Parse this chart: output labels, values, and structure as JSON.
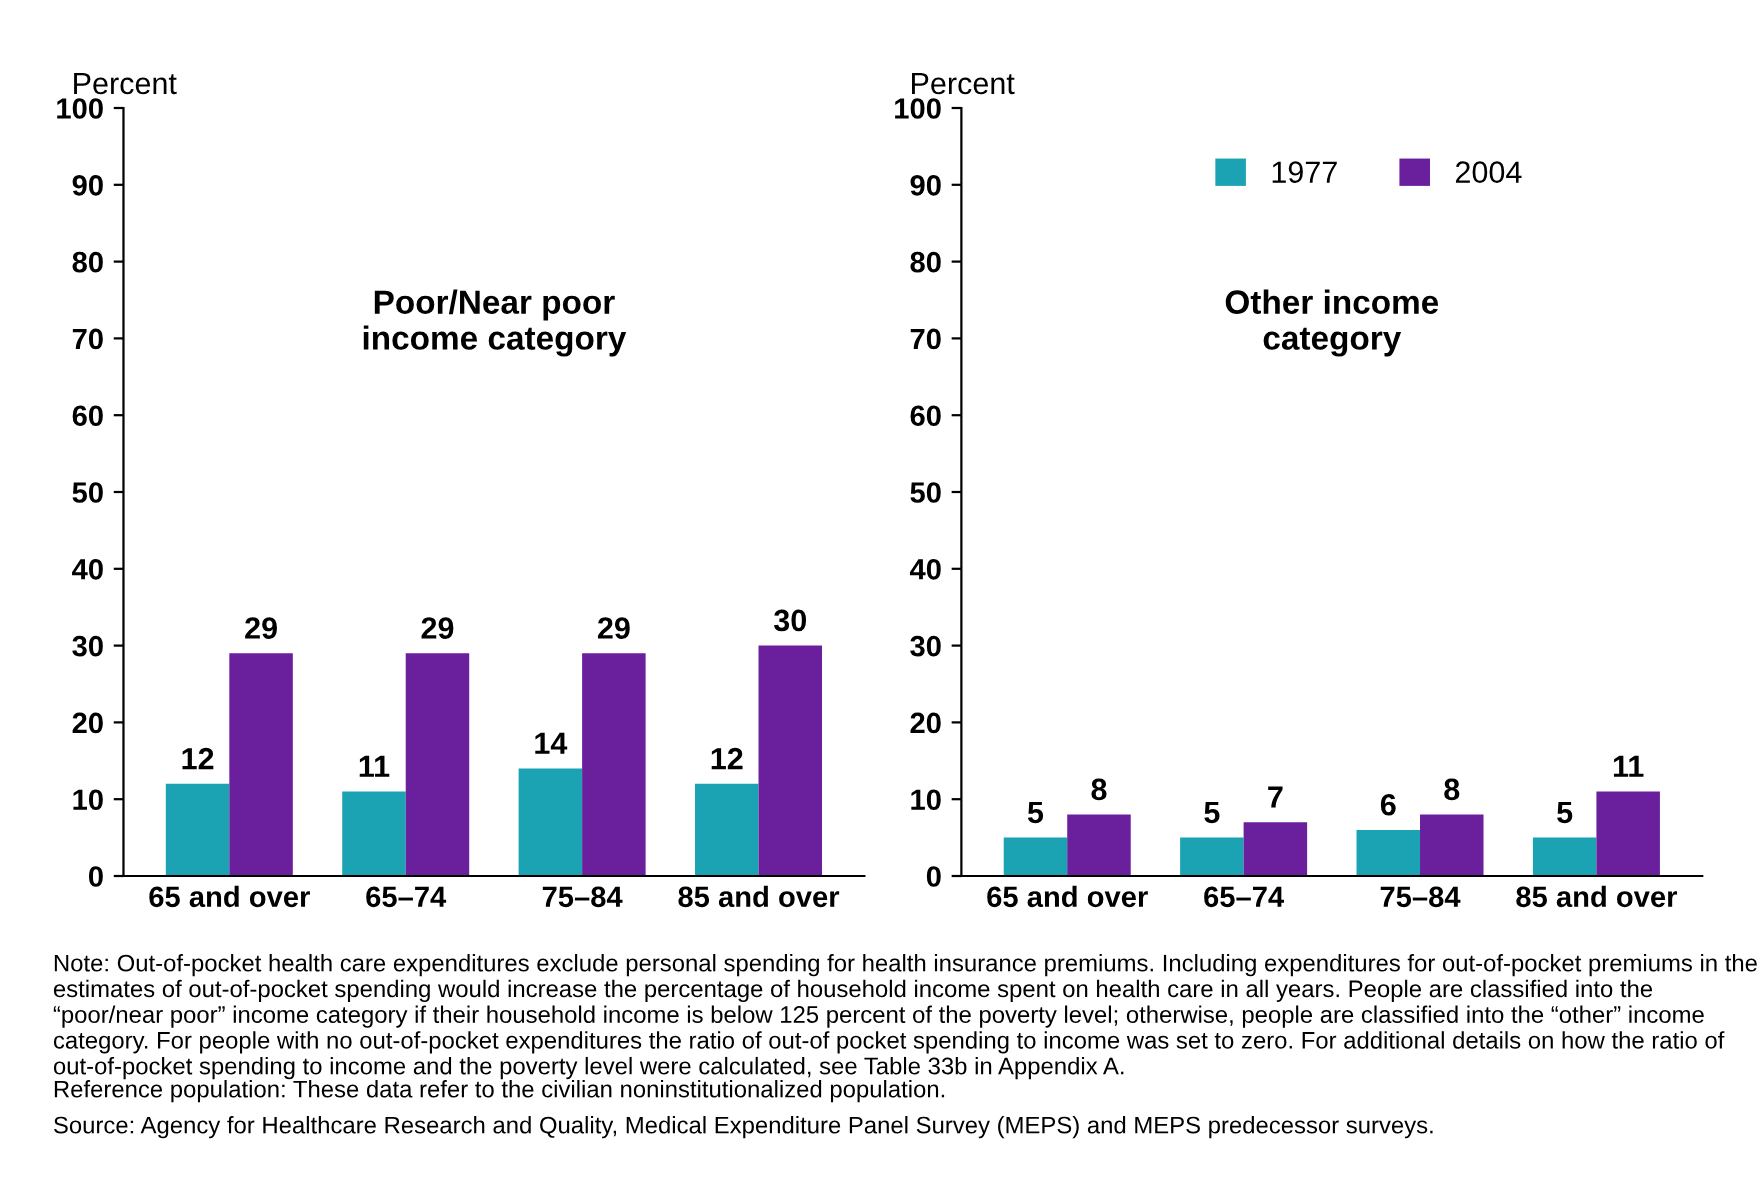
{
  "chart_data": [
    {
      "type": "bar",
      "title": "Poor/Near poor\nincome category",
      "ylabel": "Percent",
      "categories": [
        "65 and over",
        "65–74",
        "75–84",
        "85 and over"
      ],
      "series": [
        {
          "color": "#1ba3b3",
          "values": [
            12,
            11,
            14,
            12
          ]
        },
        {
          "color": "#6a1f9c",
          "values": [
            29,
            29,
            29,
            30
          ]
        }
      ],
      "ylim": [
        0,
        100
      ],
      "yticks": [
        0,
        10,
        20,
        30,
        40,
        50,
        60,
        70,
        80,
        90,
        100
      ],
      "grid": false,
      "legend": false,
      "data_labels": true,
      "annotations": [
        "Note: Out-of-pocket health care expenditures exclude personal spending for health insurance premiums. Including expenditures for out-of-pocket premiums in the estimates of out-of-pocket spending would increase the percentage of household income spent on health care in all years. People are classified into the “poor/near poor” income category if their household income is below 125 percent of the poverty level; otherwise, people are classified into the “other” income category. For people with no out-of-pocket expenditures the ratio of out-of pocket spending to income was set to zero. For additional details on how the ratio of out-of-pocket spending to income and the poverty level were calculated, see Table 33b in Appendix A.",
        "Reference population: These data refer to the civilian noninstitutionalized population.",
        "Source: Agency for Healthcare Research and Quality, Medical Expenditure Panel Survey (MEPS) and MEPS predecessor surveys."
      ]
    },
    {
      "type": "bar",
      "title": "Other income\ncategory",
      "ylabel": "Percent",
      "categories": [
        "65 and over",
        "65–74",
        "75–84",
        "85 and over"
      ],
      "series": [
        {
          "name": "1977",
          "color": "#1ba3b3",
          "values": [
            5,
            5,
            6,
            5
          ]
        },
        {
          "name": "2004",
          "color": "#6a1f9c",
          "values": [
            8,
            7,
            8,
            11
          ]
        }
      ],
      "ylim": [
        0,
        100
      ],
      "yticks": [
        0,
        10,
        20,
        30,
        40,
        50,
        60,
        70,
        80,
        90,
        100
      ],
      "grid": false,
      "legend": "top",
      "data_labels": true
    }
  ]
}
